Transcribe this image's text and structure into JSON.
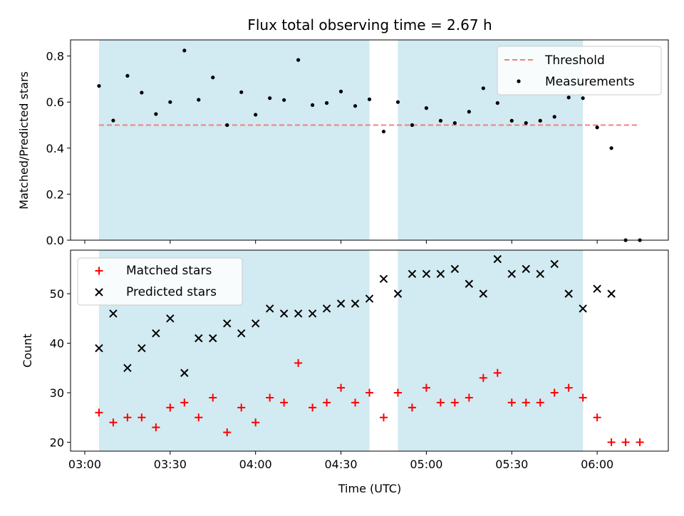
{
  "chart_data": [
    {
      "type": "scatter",
      "title": "Flux total observing time = 2.67 h",
      "xlabel": "",
      "ylabel": "Matched/Predicted stars",
      "xlim": [
        "02:55",
        "06:25"
      ],
      "ylim": [
        0,
        0.87
      ],
      "y_ticks": [
        "0.0",
        "0.2",
        "0.4",
        "0.6",
        "0.8"
      ],
      "shaded_ranges": [
        [
          "03:05",
          "04:40"
        ],
        [
          "04:50",
          "05:55"
        ]
      ],
      "shade_color": "#add8e6",
      "legend_position": "top-right",
      "threshold": {
        "name": "Threshold",
        "y": 0.5,
        "x_range": [
          "03:05",
          "06:15"
        ],
        "color": "#f08080"
      },
      "series": [
        {
          "name": "Measurements",
          "color": "#000000",
          "x": [
            "03:05",
            "03:10",
            "03:15",
            "03:20",
            "03:25",
            "03:30",
            "03:35",
            "03:40",
            "03:45",
            "03:50",
            "03:55",
            "04:00",
            "04:05",
            "04:10",
            "04:15",
            "04:20",
            "04:25",
            "04:30",
            "04:35",
            "04:40",
            "04:45",
            "04:50",
            "04:55",
            "05:00",
            "05:05",
            "05:10",
            "05:15",
            "05:20",
            "05:25",
            "05:30",
            "05:35",
            "05:40",
            "05:45",
            "05:50",
            "05:55",
            "06:00",
            "06:05",
            "06:10",
            "06:15"
          ],
          "values": [
            0.67,
            0.52,
            0.714,
            0.641,
            0.548,
            0.6,
            0.824,
            0.61,
            0.707,
            0.5,
            0.643,
            0.545,
            0.617,
            0.609,
            0.783,
            0.587,
            0.596,
            0.646,
            0.583,
            0.612,
            0.472,
            0.6,
            0.5,
            0.574,
            0.519,
            0.509,
            0.558,
            0.66,
            0.596,
            0.519,
            0.509,
            0.519,
            0.536,
            0.62,
            0.617,
            0.49,
            0.4,
            0.0,
            0.0
          ]
        }
      ]
    },
    {
      "type": "scatter",
      "title": "",
      "xlabel": "Time (UTC)",
      "ylabel": "Count",
      "xlim": [
        "02:55",
        "06:25"
      ],
      "ylim": [
        18.2,
        58.8
      ],
      "x_ticks": [
        "03:00",
        "03:30",
        "04:00",
        "04:30",
        "05:00",
        "05:30",
        "06:00"
      ],
      "y_ticks": [
        "20",
        "30",
        "40",
        "50"
      ],
      "shaded_ranges": [
        [
          "03:05",
          "04:40"
        ],
        [
          "04:50",
          "05:55"
        ]
      ],
      "shade_color": "#add8e6",
      "legend_position": "top-left",
      "series": [
        {
          "name": "Matched stars",
          "marker": "plus",
          "color": "#ff0000",
          "x": [
            "03:05",
            "03:10",
            "03:15",
            "03:20",
            "03:25",
            "03:30",
            "03:35",
            "03:40",
            "03:45",
            "03:50",
            "03:55",
            "04:00",
            "04:05",
            "04:10",
            "04:15",
            "04:20",
            "04:25",
            "04:30",
            "04:35",
            "04:40",
            "04:45",
            "04:50",
            "04:55",
            "05:00",
            "05:05",
            "05:10",
            "05:15",
            "05:20",
            "05:25",
            "05:30",
            "05:35",
            "05:40",
            "05:45",
            "05:50",
            "05:55",
            "06:00",
            "06:05",
            "06:10",
            "06:15"
          ],
          "values": [
            26,
            24,
            25,
            25,
            23,
            27,
            28,
            25,
            29,
            22,
            27,
            24,
            29,
            28,
            36,
            27,
            28,
            31,
            28,
            30,
            25,
            30,
            27,
            31,
            28,
            28,
            29,
            33,
            34,
            28,
            28,
            28,
            30,
            31,
            29,
            25,
            20,
            20,
            20
          ]
        },
        {
          "name": "Predicted stars",
          "marker": "x",
          "color": "#000000",
          "x": [
            "03:05",
            "03:10",
            "03:15",
            "03:20",
            "03:25",
            "03:30",
            "03:35",
            "03:40",
            "03:45",
            "03:50",
            "03:55",
            "04:00",
            "04:05",
            "04:10",
            "04:15",
            "04:20",
            "04:25",
            "04:30",
            "04:35",
            "04:40",
            "04:45",
            "04:50",
            "04:55",
            "05:00",
            "05:05",
            "05:10",
            "05:15",
            "05:20",
            "05:25",
            "05:30",
            "05:35",
            "05:40",
            "05:45",
            "05:50",
            "05:55",
            "06:00",
            "06:05"
          ],
          "values": [
            39,
            46,
            35,
            39,
            42,
            45,
            34,
            41,
            41,
            44,
            42,
            44,
            47,
            46,
            46,
            46,
            47,
            48,
            48,
            49,
            53,
            50,
            54,
            54,
            54,
            55,
            52,
            50,
            57,
            54,
            55,
            54,
            56,
            50,
            47,
            51,
            50
          ]
        }
      ]
    }
  ]
}
